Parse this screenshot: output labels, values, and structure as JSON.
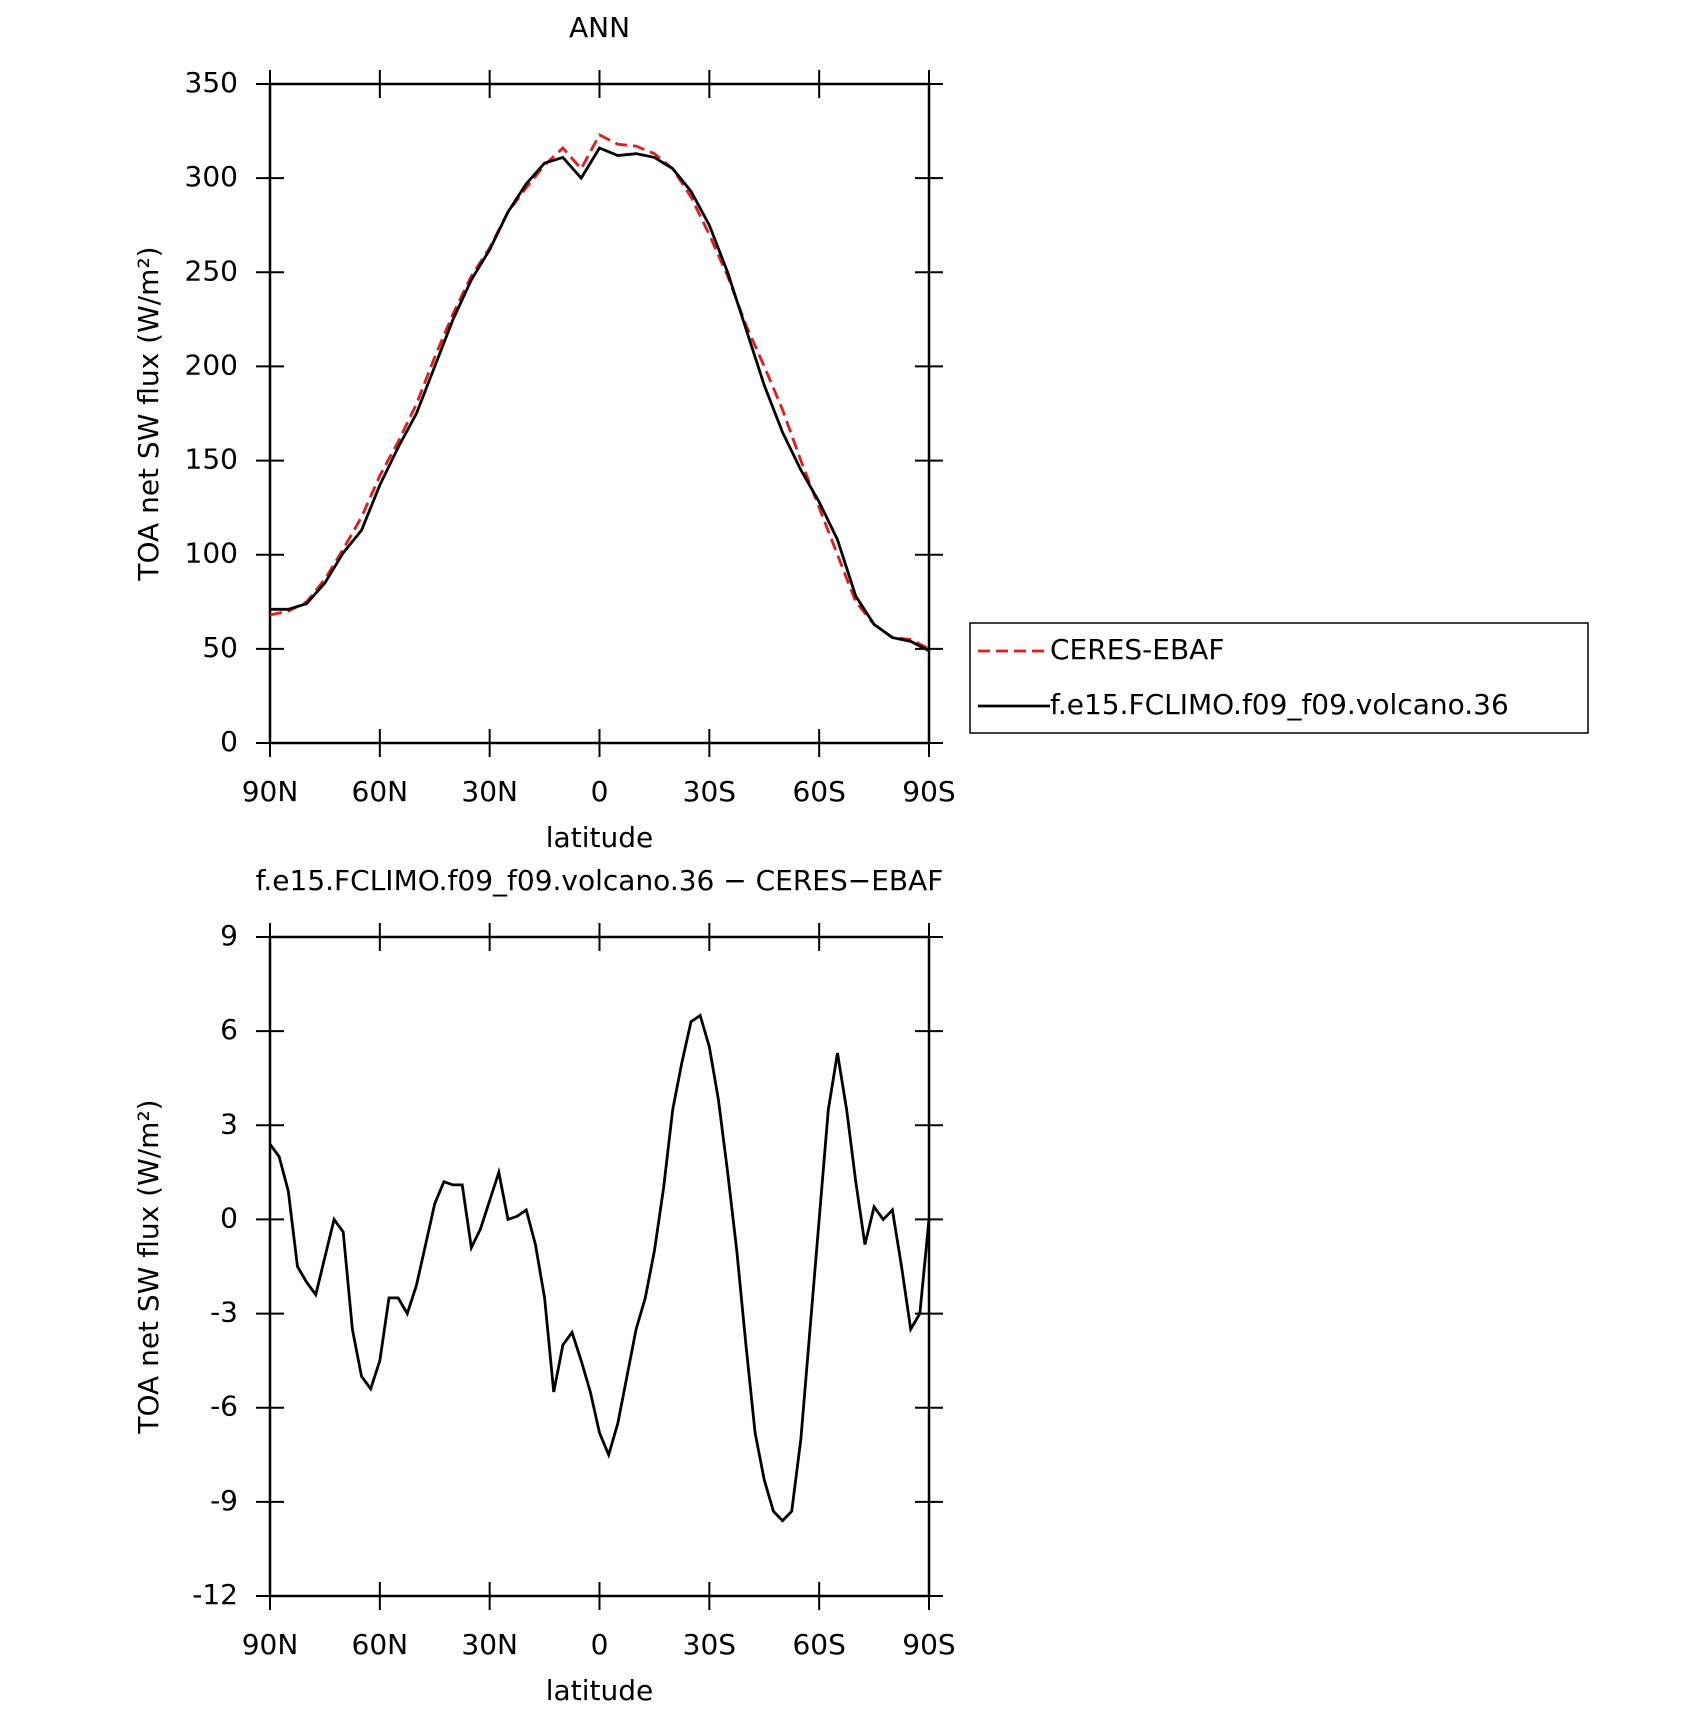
{
  "chart_data": [
    {
      "type": "line",
      "title": "ANN",
      "xlabel": "latitude",
      "ylabel": "TOA net SW flux (W/m²)",
      "x": [
        90,
        85,
        80,
        75,
        70,
        65,
        60,
        55,
        50,
        45,
        40,
        35,
        30,
        25,
        20,
        15,
        10,
        5,
        0,
        -5,
        -10,
        -15,
        -20,
        -25,
        -30,
        -35,
        -40,
        -45,
        -50,
        -55,
        -60,
        -65,
        -70,
        -75,
        -80,
        -85,
        -90
      ],
      "series": [
        {
          "name": "CERES-EBAF",
          "color": "#e41a1c",
          "style": "dashed",
          "values": [
            68,
            70,
            75,
            87,
            103,
            120,
            142,
            160,
            180,
            205,
            228,
            248,
            263,
            282,
            295,
            307,
            316,
            305,
            323,
            318,
            317,
            313,
            305,
            290,
            270,
            248,
            222,
            200,
            177,
            150,
            125,
            100,
            75,
            63,
            56,
            55,
            50
          ]
        },
        {
          "name": "f.e15.FCLIMO.f09_f09.volcano.36",
          "color": "#000000",
          "style": "solid",
          "values": [
            71,
            71,
            74,
            85,
            101,
            113,
            137,
            157,
            175,
            200,
            225,
            246,
            262,
            282,
            297,
            308,
            311,
            300,
            316,
            312,
            313,
            311,
            305,
            293,
            275,
            250,
            220,
            190,
            165,
            145,
            128,
            108,
            78,
            63,
            56,
            54,
            49
          ]
        }
      ],
      "xlim": [
        90,
        -90
      ],
      "xticks": [
        {
          "value": 90,
          "label": "90N"
        },
        {
          "value": 60,
          "label": "60N"
        },
        {
          "value": 30,
          "label": "30N"
        },
        0,
        {
          "value": -30,
          "label": "30S"
        },
        {
          "value": -60,
          "label": "60S"
        },
        {
          "value": -90,
          "label": "90S"
        }
      ],
      "ylim": [
        0,
        350
      ],
      "yticks": [
        0,
        50,
        100,
        150,
        200,
        250,
        300,
        350
      ],
      "legend": "right"
    },
    {
      "type": "line",
      "title": "f.e15.FCLIMO.f09_f09.volcano.36 − CERES−EBAF",
      "xlabel": "latitude",
      "ylabel": "TOA net SW flux (W/m²)",
      "x": [
        90,
        87.5,
        85,
        82.5,
        80,
        77.5,
        75,
        72.5,
        70,
        67.5,
        65,
        62.5,
        60,
        57.5,
        55,
        52.5,
        50,
        47.5,
        45,
        42.5,
        40,
        37.5,
        35,
        32.5,
        30,
        27.5,
        25,
        22.5,
        20,
        17.5,
        15,
        12.5,
        10,
        7.5,
        5,
        2.5,
        0,
        -2.5,
        -5,
        -7.5,
        -10,
        -12.5,
        -15,
        -17.5,
        -20,
        -22.5,
        -25,
        -27.5,
        -30,
        -32.5,
        -35,
        -37.5,
        -40,
        -42.5,
        -45,
        -47.5,
        -50,
        -52.5,
        -55,
        -57.5,
        -60,
        -62.5,
        -65,
        -67.5,
        -70,
        -72.5,
        -75,
        -77.5,
        -80,
        -82.5,
        -85,
        -87.5,
        -90
      ],
      "series": [
        {
          "color": "#000000",
          "style": "solid",
          "values": [
            2.4,
            2.0,
            0.9,
            -1.5,
            -2.0,
            -2.4,
            -1.2,
            0.0,
            -0.4,
            -3.5,
            -5.0,
            -5.4,
            -4.5,
            -2.5,
            -2.5,
            -3.0,
            -2.1,
            -0.8,
            0.5,
            1.2,
            1.1,
            1.1,
            -0.9,
            -0.3,
            0.6,
            1.5,
            0.0,
            0.1,
            0.3,
            -0.8,
            -2.5,
            -5.5,
            -4.0,
            -3.6,
            -4.5,
            -5.5,
            -6.8,
            -7.5,
            -6.5,
            -5.0,
            -3.5,
            -2.5,
            -1.0,
            1.0,
            3.5,
            5.0,
            6.3,
            6.5,
            5.5,
            3.8,
            1.5,
            -1.0,
            -4.0,
            -6.8,
            -8.3,
            -9.3,
            -9.6,
            -9.3,
            -7.0,
            -3.5,
            0.0,
            3.5,
            5.3,
            3.5,
            1.2,
            -0.8,
            0.4,
            0.0,
            0.3,
            -1.5,
            -3.5,
            -3.0,
            0.0
          ]
        }
      ],
      "xlim": [
        90,
        -90
      ],
      "xticks": [
        {
          "value": 90,
          "label": "90N"
        },
        {
          "value": 60,
          "label": "60N"
        },
        {
          "value": 30,
          "label": "30N"
        },
        0,
        {
          "value": -30,
          "label": "30S"
        },
        {
          "value": -60,
          "label": "60S"
        },
        {
          "value": -90,
          "label": "90S"
        }
      ],
      "ylim": [
        -12,
        9
      ],
      "yticks": [
        -12,
        -9,
        -6,
        -3,
        0,
        3,
        6,
        9
      ]
    }
  ]
}
